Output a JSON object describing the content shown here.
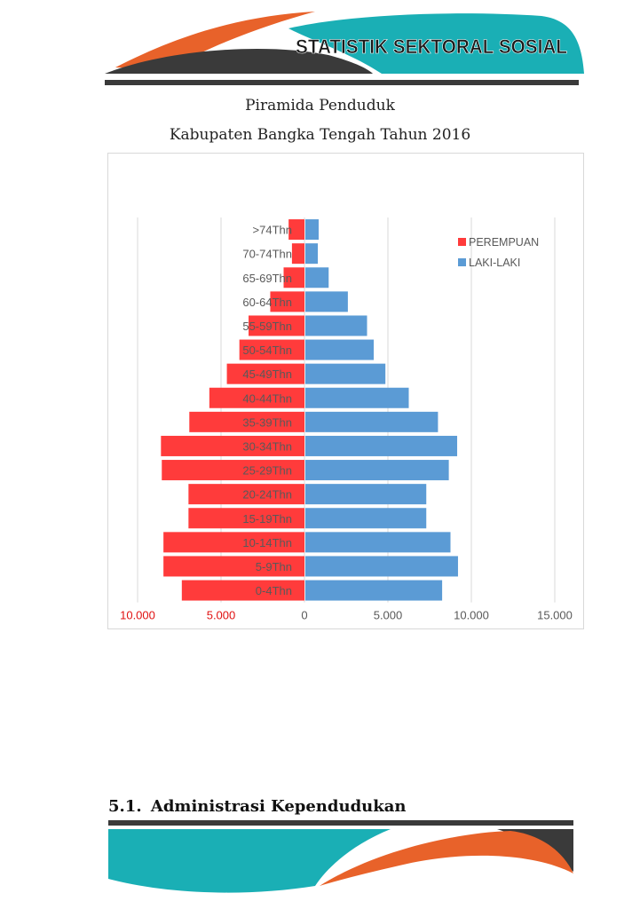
{
  "header": {
    "banner_title": "STATISTIK SEKTORAL SOSIAL",
    "colors": {
      "orange": "#E8622A",
      "teal": "#1AAFB5",
      "dark": "#3A3A3A"
    }
  },
  "caption": {
    "line1": "Piramida Penduduk",
    "line2": "Kabupaten Bangka Tengah Tahun 2016"
  },
  "chart_data": {
    "type": "bar",
    "orientation": "horizontal-population-pyramid",
    "categories": [
      ">74Thn",
      "70-74Thn",
      "65-69Thn",
      "60-64Thn",
      "55-59Thn",
      "50-54Thn",
      "45-49Thn",
      "40-44Thn",
      "35-39Thn",
      "30-34Thn",
      "25-29Thn",
      "20-24Thn",
      "15-19Thn",
      "10-14Thn",
      "5-9Thn",
      "0-4Thn"
    ],
    "series": [
      {
        "name": "PEREMPUAN",
        "color": "#FF3B3B",
        "values": [
          950,
          750,
          1250,
          2050,
          3350,
          3900,
          4650,
          5700,
          6900,
          8600,
          8550,
          6950,
          6950,
          8450,
          8450,
          7350
        ]
      },
      {
        "name": "LAKI-LAKI",
        "color": "#5B9BD5",
        "values": [
          850,
          800,
          1450,
          2600,
          3750,
          4150,
          4850,
          6250,
          8000,
          9150,
          8650,
          7300,
          7300,
          8750,
          9200,
          8250
        ]
      }
    ],
    "x_ticks": [
      "10.000",
      "5.000",
      "0",
      "5.000",
      "10.000",
      "15.000"
    ],
    "x_tick_values": [
      -10000,
      -5000,
      0,
      5000,
      10000,
      15000
    ],
    "xlim": [
      -10000,
      15000
    ],
    "grid": true,
    "legend_position": "top-right"
  },
  "section": {
    "number": "5.1.",
    "title": "Administrasi Kependudukan"
  }
}
